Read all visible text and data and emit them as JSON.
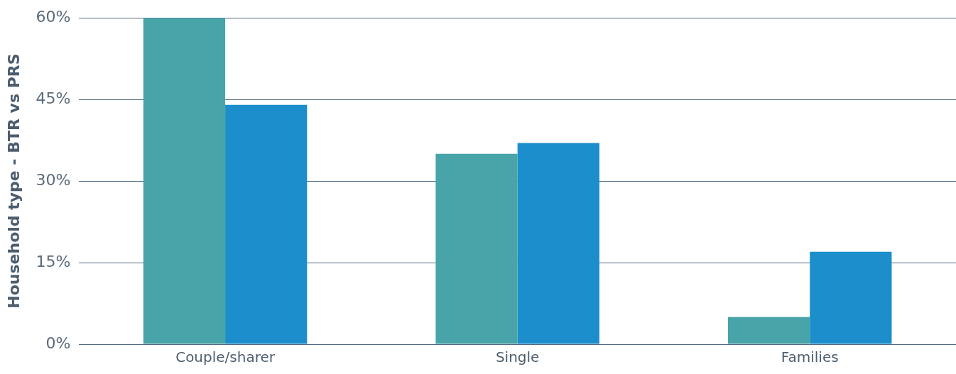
{
  "chart_data": {
    "type": "bar",
    "ylabel": "Household type - BTR vs PRS",
    "categories": [
      "Couple/sharer",
      "Single",
      "Families"
    ],
    "series": [
      {
        "color": "#48a4a8",
        "values": [
          60,
          35,
          5
        ]
      },
      {
        "color": "#1b8ecb",
        "values": [
          44,
          37,
          17
        ]
      }
    ],
    "ylim": [
      0,
      60
    ],
    "yticks": [
      {
        "value": 0,
        "label": "0%"
      },
      {
        "value": 15,
        "label": "15%"
      },
      {
        "value": 30,
        "label": "30%"
      },
      {
        "value": 45,
        "label": "45%"
      },
      {
        "value": 60,
        "label": "60%"
      }
    ],
    "grid": "y",
    "legend": false
  }
}
